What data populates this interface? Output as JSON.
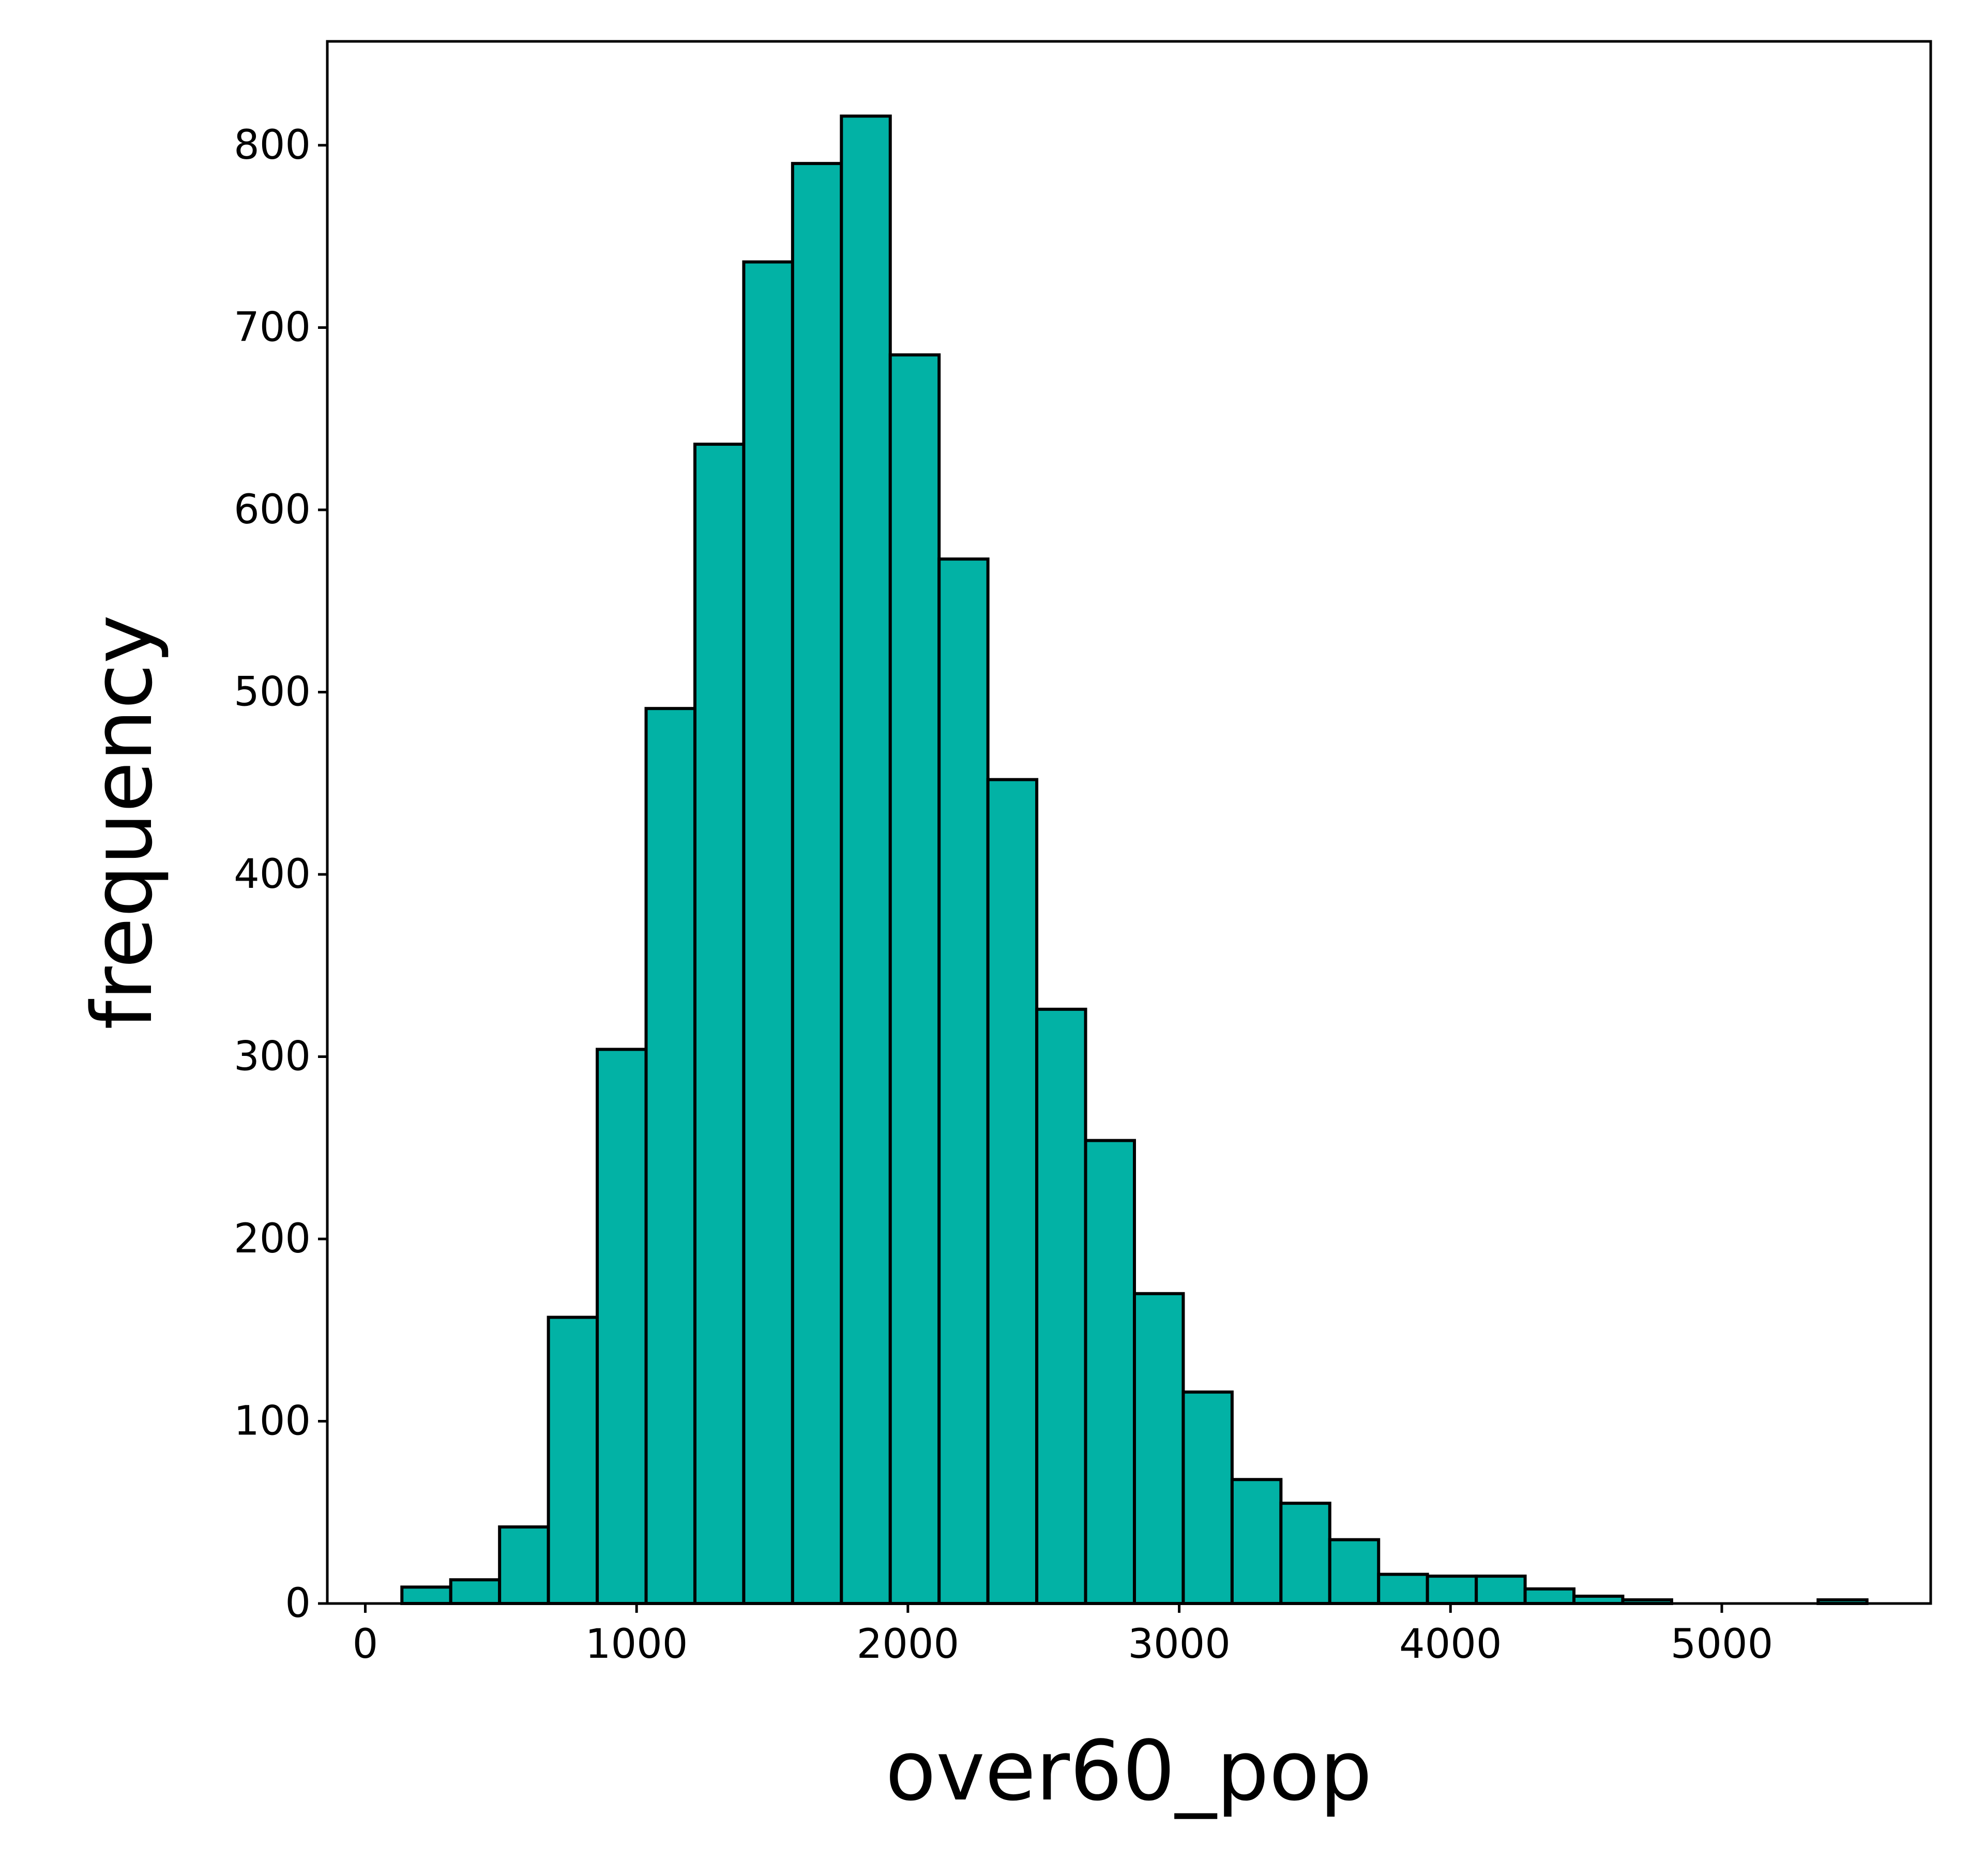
{
  "chart_data": {
    "type": "bar",
    "title": "",
    "xlabel": "over60_pop",
    "ylabel": "frequency",
    "xlim": [
      -140,
      5770
    ],
    "ylim": [
      0,
      857
    ],
    "xticks": [
      0,
      1000,
      2000,
      3000,
      4000,
      5000
    ],
    "xtick_labels": [
      "0",
      "1000",
      "2000",
      "3000",
      "4000",
      "5000"
    ],
    "yticks": [
      0,
      100,
      200,
      300,
      400,
      500,
      600,
      700,
      800
    ],
    "ytick_labels": [
      "0",
      "100",
      "200",
      "300",
      "400",
      "500",
      "600",
      "700",
      "800"
    ],
    "grid": false,
    "bar_color": "#02b2a5",
    "edge_color": "#000000",
    "bins": [
      {
        "x0": 135,
        "x1": 315,
        "count": 9
      },
      {
        "x0": 315,
        "x1": 495,
        "count": 13
      },
      {
        "x0": 495,
        "x1": 675,
        "count": 42
      },
      {
        "x0": 675,
        "x1": 855,
        "count": 157
      },
      {
        "x0": 855,
        "x1": 1035,
        "count": 304
      },
      {
        "x0": 1035,
        "x1": 1215,
        "count": 491
      },
      {
        "x0": 1215,
        "x1": 1395,
        "count": 636
      },
      {
        "x0": 1395,
        "x1": 1575,
        "count": 736
      },
      {
        "x0": 1575,
        "x1": 1755,
        "count": 790
      },
      {
        "x0": 1755,
        "x1": 1935,
        "count": 816
      },
      {
        "x0": 1935,
        "x1": 2115,
        "count": 685
      },
      {
        "x0": 2115,
        "x1": 2295,
        "count": 573
      },
      {
        "x0": 2295,
        "x1": 2475,
        "count": 452
      },
      {
        "x0": 2475,
        "x1": 2655,
        "count": 326
      },
      {
        "x0": 2655,
        "x1": 2835,
        "count": 254
      },
      {
        "x0": 2835,
        "x1": 3015,
        "count": 170
      },
      {
        "x0": 3015,
        "x1": 3195,
        "count": 116
      },
      {
        "x0": 3195,
        "x1": 3375,
        "count": 68
      },
      {
        "x0": 3375,
        "x1": 3555,
        "count": 55
      },
      {
        "x0": 3555,
        "x1": 3735,
        "count": 35
      },
      {
        "x0": 3735,
        "x1": 3915,
        "count": 16
      },
      {
        "x0": 3915,
        "x1": 4095,
        "count": 15
      },
      {
        "x0": 4095,
        "x1": 4275,
        "count": 15
      },
      {
        "x0": 4275,
        "x1": 4455,
        "count": 8
      },
      {
        "x0": 4455,
        "x1": 4635,
        "count": 4
      },
      {
        "x0": 4635,
        "x1": 4815,
        "count": 2
      },
      {
        "x0": 4815,
        "x1": 4995,
        "count": 0
      },
      {
        "x0": 4995,
        "x1": 5175,
        "count": 0
      },
      {
        "x0": 5175,
        "x1": 5355,
        "count": 0
      },
      {
        "x0": 5355,
        "x1": 5535,
        "count": 2
      }
    ]
  }
}
